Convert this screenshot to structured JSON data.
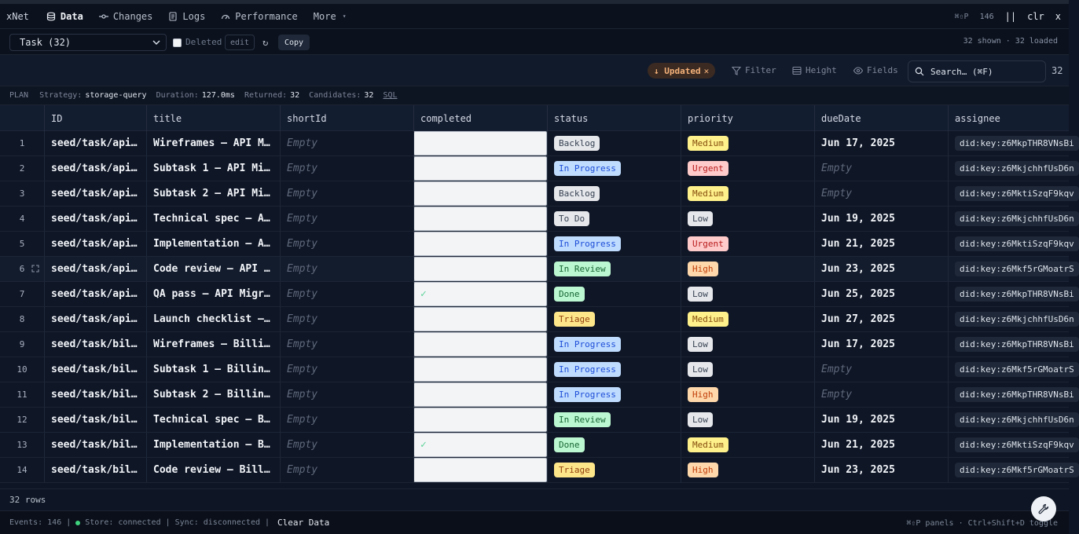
{
  "tabbar": {
    "brand": "xNet",
    "tabs": [
      {
        "label": "Data",
        "icon": "database-icon",
        "active": true
      },
      {
        "label": "Changes",
        "icon": "commit-icon"
      },
      {
        "label": "Logs",
        "icon": "logs-icon"
      },
      {
        "label": "Performance",
        "icon": "gauge-icon"
      },
      {
        "label": "More",
        "icon": "caret-down-icon"
      }
    ],
    "shortcut": "⌘⇧P",
    "event_count": "146",
    "pause_label": "||",
    "clear_label": "clr",
    "close_label": "x"
  },
  "toolbar1": {
    "select_value": "Task (32)",
    "deleted_label": "Deleted",
    "edit_label": "edit",
    "refresh_glyph": "↻",
    "copy_label": "Copy",
    "loaded_text": "32 shown · 32 loaded"
  },
  "toolbar2": {
    "sort_label": "↓ Updated",
    "sort_clear": "✕",
    "filter_label": "Filter",
    "height_label": "Height",
    "fields_label": "Fields",
    "search_placeholder": "Search…  (⌘F)",
    "total": "32"
  },
  "plan": {
    "label": "PLAN",
    "strategy_label": "Strategy:",
    "strategy_value": "storage-query",
    "duration_label": "Duration:",
    "duration_value": "127.0ms",
    "returned_label": "Returned:",
    "returned_value": "32",
    "candidates_label": "Candidates:",
    "candidates_value": "32",
    "sql_label": "SQL"
  },
  "columns": [
    "ID",
    "title",
    "shortId",
    "completed",
    "status",
    "priority",
    "dueDate",
    "assignee"
  ],
  "status_colors": {
    "Backlog": {
      "bg": "#e5e7eb",
      "fg": "#374151"
    },
    "In Progress": {
      "bg": "#bfdbfe",
      "fg": "#1d4ed8"
    },
    "To Do": {
      "bg": "#e5e7eb",
      "fg": "#374151"
    },
    "In Review": {
      "bg": "#bbf7d0",
      "fg": "#166534"
    },
    "Done": {
      "bg": "#bbf7d0",
      "fg": "#166534"
    },
    "Triage": {
      "bg": "#fde68a",
      "fg": "#92400e"
    }
  },
  "priority_colors": {
    "Medium": {
      "bg": "#fef08a",
      "fg": "#854d0e"
    },
    "Urgent": {
      "bg": "#fecaca",
      "fg": "#b91c1c"
    },
    "Low": {
      "bg": "#e5e7eb",
      "fg": "#374151"
    },
    "High": {
      "bg": "#fed7aa",
      "fg": "#c2410c"
    }
  },
  "rows": [
    {
      "n": "1",
      "id": "seed/task/api…",
      "title": "Wireframes — API M…",
      "shortId": "Empty",
      "completed": "",
      "status": "Backlog",
      "priority": "Medium",
      "dueDate": "Jun 17, 2025",
      "assignee": "did:key:z6MkpTHR8VNsBi"
    },
    {
      "n": "2",
      "id": "seed/task/api…",
      "title": "Subtask 1 — API Mi…",
      "shortId": "Empty",
      "completed": "",
      "status": "In Progress",
      "priority": "Urgent",
      "dueDate": "Empty",
      "assignee": "did:key:z6MkjchhfUsD6n"
    },
    {
      "n": "3",
      "id": "seed/task/api…",
      "title": "Subtask 2 — API Mi…",
      "shortId": "Empty",
      "completed": "",
      "status": "Backlog",
      "priority": "Medium",
      "dueDate": "Empty",
      "assignee": "did:key:z6MktiSzqF9kqv"
    },
    {
      "n": "4",
      "id": "seed/task/api…",
      "title": "Technical spec — A…",
      "shortId": "Empty",
      "completed": "",
      "status": "To Do",
      "priority": "Low",
      "dueDate": "Jun 19, 2025",
      "assignee": "did:key:z6MkjchhfUsD6n"
    },
    {
      "n": "5",
      "id": "seed/task/api…",
      "title": "Implementation — A…",
      "shortId": "Empty",
      "completed": "",
      "status": "In Progress",
      "priority": "Urgent",
      "dueDate": "Jun 21, 2025",
      "assignee": "did:key:z6MktiSzqF9kqv"
    },
    {
      "n": "6",
      "id": "seed/task/api…",
      "title": "Code review — API …",
      "shortId": "Empty",
      "completed": "",
      "status": "In Review",
      "priority": "High",
      "dueDate": "Jun 23, 2025",
      "assignee": "did:key:z6Mkf5rGMoatrS"
    },
    {
      "n": "7",
      "id": "seed/task/api…",
      "title": "QA pass — API Migr…",
      "shortId": "Empty",
      "completed": "✓",
      "status": "Done",
      "priority": "Low",
      "dueDate": "Jun 25, 2025",
      "assignee": "did:key:z6MkpTHR8VNsBi"
    },
    {
      "n": "8",
      "id": "seed/task/api…",
      "title": "Launch checklist —…",
      "shortId": "Empty",
      "completed": "",
      "status": "Triage",
      "priority": "Medium",
      "dueDate": "Jun 27, 2025",
      "assignee": "did:key:z6MkjchhfUsD6n"
    },
    {
      "n": "9",
      "id": "seed/task/bil…",
      "title": "Wireframes — Billi…",
      "shortId": "Empty",
      "completed": "",
      "status": "In Progress",
      "priority": "Low",
      "dueDate": "Jun 17, 2025",
      "assignee": "did:key:z6MkpTHR8VNsBi"
    },
    {
      "n": "10",
      "id": "seed/task/bil…",
      "title": "Subtask 1 — Billin…",
      "shortId": "Empty",
      "completed": "",
      "status": "In Progress",
      "priority": "Low",
      "dueDate": "Empty",
      "assignee": "did:key:z6Mkf5rGMoatrS"
    },
    {
      "n": "11",
      "id": "seed/task/bil…",
      "title": "Subtask 2 — Billin…",
      "shortId": "Empty",
      "completed": "",
      "status": "In Progress",
      "priority": "High",
      "dueDate": "Empty",
      "assignee": "did:key:z6MkpTHR8VNsBi"
    },
    {
      "n": "12",
      "id": "seed/task/bil…",
      "title": "Technical spec — B…",
      "shortId": "Empty",
      "completed": "",
      "status": "In Review",
      "priority": "Low",
      "dueDate": "Jun 19, 2025",
      "assignee": "did:key:z6MkjchhfUsD6n"
    },
    {
      "n": "13",
      "id": "seed/task/bil…",
      "title": "Implementation — B…",
      "shortId": "Empty",
      "completed": "✓",
      "status": "Done",
      "priority": "Medium",
      "dueDate": "Jun 21, 2025",
      "assignee": "did:key:z6MktiSzqF9kqv"
    },
    {
      "n": "14",
      "id": "seed/task/bil…",
      "title": "Code review — Bill…",
      "shortId": "Empty",
      "completed": "",
      "status": "Triage",
      "priority": "High",
      "dueDate": "Jun 23, 2025",
      "assignee": "did:key:z6Mkf5rGMoatrS"
    }
  ],
  "footer": {
    "rows_label": "32 rows",
    "events": "Events: 146",
    "store": "Store: connected",
    "sync": "Sync: disconnected",
    "clear_data": "Clear Data",
    "hint": "⌘⇧P panels · Ctrl+Shift+D toggle"
  }
}
